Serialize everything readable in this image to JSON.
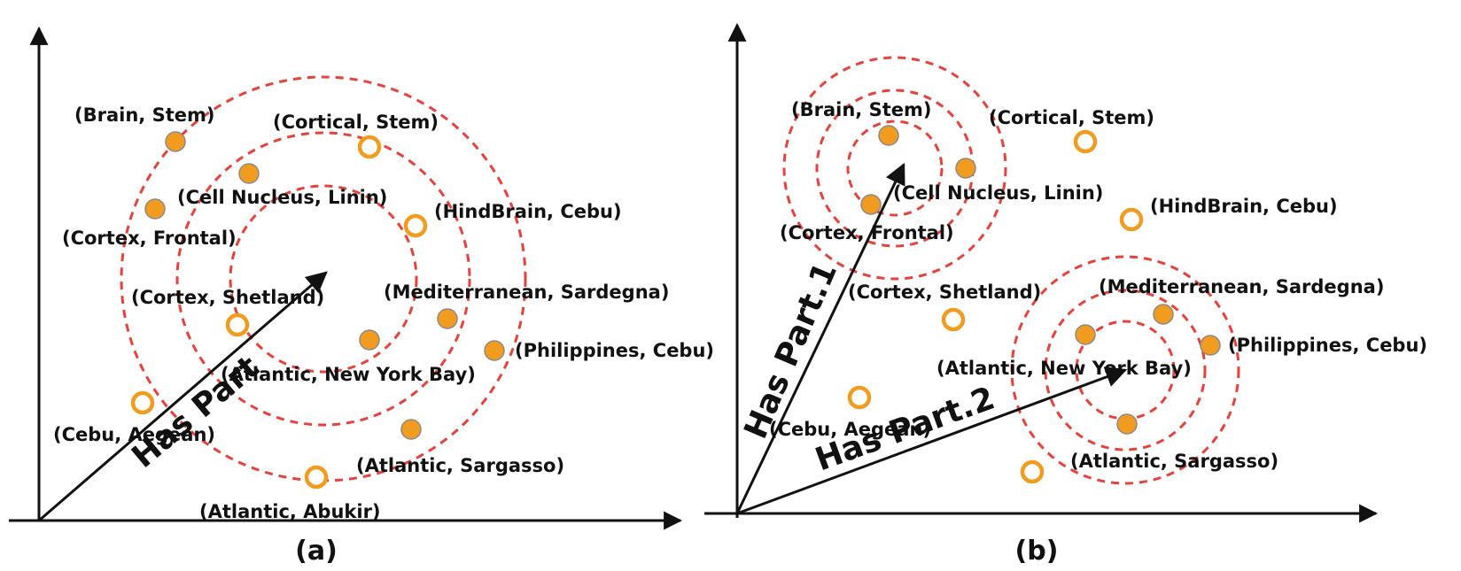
{
  "colors": {
    "filled_point": "#f29c1f",
    "hollow_point": "#f29c1f",
    "ring": "#e8413a",
    "ink": "#111111"
  },
  "panels": [
    {
      "caption": "(a)",
      "arrows": [
        {
          "label": "Has Part"
        }
      ],
      "points": [
        {
          "label": "(Brain,  Stem)",
          "style": "filled"
        },
        {
          "label": "(Cortical,  Stem)",
          "style": "hollow"
        },
        {
          "label": "(Cell Nucleus,  Linin)",
          "style": "filled"
        },
        {
          "label": "(Cortex,  Frontal)",
          "style": "filled"
        },
        {
          "label": "(HindBrain,  Cebu)",
          "style": "hollow"
        },
        {
          "label": "(Cortex,  Shetland)",
          "style": "hollow"
        },
        {
          "label": "(Mediterranean,  Sardegna)",
          "style": "filled"
        },
        {
          "label": "(Atlantic,  New York Bay)",
          "style": "filled"
        },
        {
          "label": "(Philippines,  Cebu)",
          "style": "filled"
        },
        {
          "label": "(Cebu,  Aegean)",
          "style": "hollow"
        },
        {
          "label": "(Atlantic,  Sargasso)",
          "style": "filled"
        },
        {
          "label": "(Atlantic,  Abukir)",
          "style": "hollow"
        }
      ]
    },
    {
      "caption": "(b)",
      "arrows": [
        {
          "label": "Has Part.1"
        },
        {
          "label": "Has Part.2"
        }
      ],
      "points": [
        {
          "label": "(Brain,  Stem)",
          "style": "filled"
        },
        {
          "label": "(Cortical,  Stem)",
          "style": "hollow"
        },
        {
          "label": "(Cell Nucleus,  Linin)",
          "style": "filled"
        },
        {
          "label": "(Cortex,  Frontal)",
          "style": "filled"
        },
        {
          "label": "(HindBrain,  Cebu)",
          "style": "hollow"
        },
        {
          "label": "(Cortex,  Shetland)",
          "style": "hollow"
        },
        {
          "label": "(Mediterranean,  Sardegna)",
          "style": "filled"
        },
        {
          "label": "(Atlantic,  New York Bay)",
          "style": "filled"
        },
        {
          "label": "(Philippines,  Cebu)",
          "style": "filled"
        },
        {
          "label": "(Cebu,  Aegean)",
          "style": "hollow"
        },
        {
          "label": "(Atlantic,  Sargasso)",
          "style": "filled"
        },
        {
          "label": "",
          "style": "hollow"
        }
      ]
    }
  ]
}
